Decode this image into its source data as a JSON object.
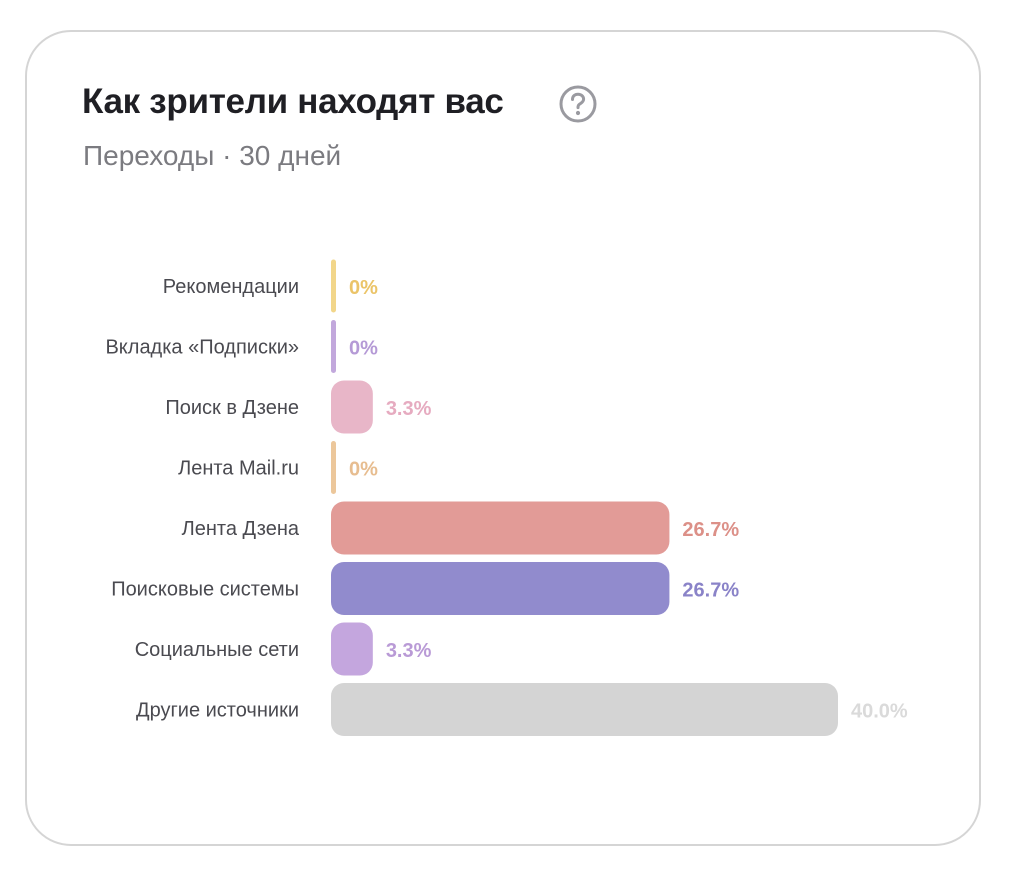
{
  "widget": {
    "title": "Как зрители находят вас",
    "subtitle": "Переходы · 30 дней",
    "help_icon": "question-circle-icon"
  },
  "chart_data": {
    "type": "bar",
    "orientation": "horizontal",
    "categories": [
      "Рекомендации",
      "Вкладка «Подписки»",
      "Поиск в Дзене",
      "Лента Mail.ru",
      "Лента Дзена",
      "Поисковые системы",
      "Социальные сети",
      "Другие источники"
    ],
    "values": [
      0,
      0,
      3.3,
      0,
      26.7,
      26.7,
      3.3,
      40.0
    ],
    "value_labels": [
      "0%",
      "0%",
      "3.3%",
      "0%",
      "26.7%",
      "26.7%",
      "3.3%",
      "40.0%"
    ],
    "colors": [
      "#f2d68a",
      "#c2a8dc",
      "#e8b6c8",
      "#ecc79b",
      "#e29b97",
      "#918bcd",
      "#c4a6de",
      "#d4d4d4"
    ],
    "label_colors": [
      "#ebc468",
      "#b59ad6",
      "#e6abc0",
      "#e7bd90",
      "#dc9088",
      "#8a83c8",
      "#b99ad6",
      "#dadada"
    ],
    "xlim": [
      0,
      40.0
    ],
    "grid": false,
    "legend": "none"
  }
}
